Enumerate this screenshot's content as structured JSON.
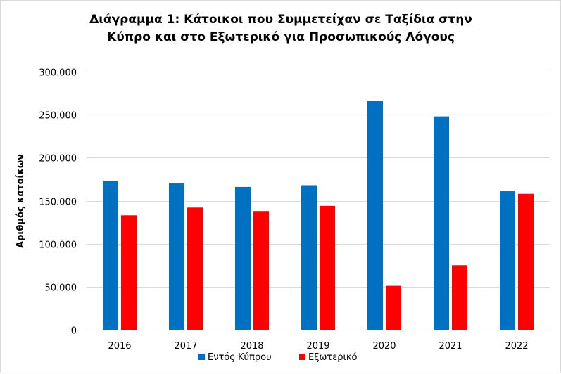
{
  "chart_data": {
    "type": "bar",
    "title_lines": [
      "Διάγραμμα 1: Κάτοικοι που Συμμετείχαν σε Ταξίδια στην",
      "Κύπρο και στο Εξωτερικό για Προσωπικούς Λόγους"
    ],
    "xlabel": "",
    "ylabel": "Αριθμός κατοίκων",
    "categories": [
      "2016",
      "2017",
      "2018",
      "2019",
      "2020",
      "2021",
      "2022"
    ],
    "series": [
      {
        "name": "Εντός Κύπρου",
        "color": "#0070C0",
        "values": [
          173000,
          170000,
          166000,
          168000,
          266000,
          248000,
          161000
        ]
      },
      {
        "name": "Εξωτερικό",
        "color": "#FF0000",
        "values": [
          133000,
          142000,
          138000,
          144000,
          51000,
          75000,
          158000
        ]
      }
    ],
    "ylim": [
      0,
      300000
    ],
    "yticks": [
      0,
      50000,
      100000,
      150000,
      200000,
      250000,
      300000
    ],
    "ytick_labels": [
      "0",
      "50.000",
      "100.000",
      "150.000",
      "200.000",
      "250.000",
      "300.000"
    ],
    "grid": true,
    "legend_position": "bottom"
  }
}
